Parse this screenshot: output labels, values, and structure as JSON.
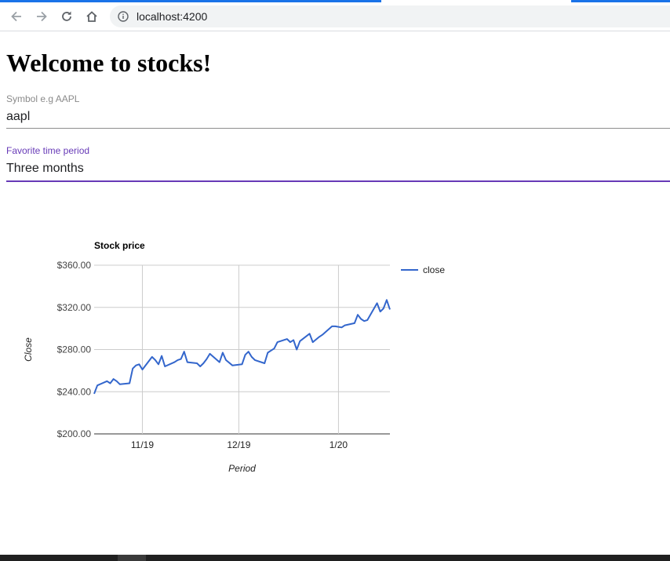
{
  "browser": {
    "url": "localhost:4200",
    "icons": [
      "back-arrow-icon",
      "forward-arrow-icon",
      "reload-icon",
      "home-icon",
      "info-icon"
    ]
  },
  "page": {
    "title": "Welcome to stocks!",
    "symbol": {
      "label": "Symbol e.g AAPL",
      "value": "aapl"
    },
    "period": {
      "label": "Favorite time period",
      "value": "Three months"
    }
  },
  "colors": {
    "accent": "#673ab7",
    "series": "#3366cc",
    "grid": "#cccccc"
  },
  "chart_data": {
    "type": "line",
    "title": "Stock price",
    "xlabel": "Period",
    "ylabel": "Close",
    "ylim": [
      200,
      360
    ],
    "yticks": [
      "$200.00",
      "$240.00",
      "$280.00",
      "$320.00",
      "$360.00"
    ],
    "xticks": [
      "11/19",
      "12/19",
      "1/20"
    ],
    "xtick_dates": [
      "2019-11-01",
      "2019-12-01",
      "2020-01-01"
    ],
    "legend": {
      "position": "right",
      "entries": [
        "close"
      ]
    },
    "grid": true,
    "series": [
      {
        "name": "close",
        "x": [
          "2019-10-17",
          "2019-10-18",
          "2019-10-21",
          "2019-10-22",
          "2019-10-23",
          "2019-10-24",
          "2019-10-25",
          "2019-10-28",
          "2019-10-29",
          "2019-10-30",
          "2019-10-31",
          "2019-11-01",
          "2019-11-04",
          "2019-11-05",
          "2019-11-06",
          "2019-11-07",
          "2019-11-08",
          "2019-11-11",
          "2019-11-12",
          "2019-11-13",
          "2019-11-14",
          "2019-11-15",
          "2019-11-18",
          "2019-11-19",
          "2019-11-20",
          "2019-11-21",
          "2019-11-22",
          "2019-11-25",
          "2019-11-26",
          "2019-11-27",
          "2019-11-29",
          "2019-12-02",
          "2019-12-03",
          "2019-12-04",
          "2019-12-05",
          "2019-12-06",
          "2019-12-09",
          "2019-12-10",
          "2019-12-11",
          "2019-12-12",
          "2019-12-13",
          "2019-12-16",
          "2019-12-17",
          "2019-12-18",
          "2019-12-19",
          "2019-12-20",
          "2019-12-23",
          "2019-12-24",
          "2019-12-26",
          "2019-12-27",
          "2019-12-30",
          "2019-12-31",
          "2020-01-02",
          "2020-01-03",
          "2020-01-06",
          "2020-01-07",
          "2020-01-08",
          "2020-01-09",
          "2020-01-10",
          "2020-01-13",
          "2020-01-14",
          "2020-01-15",
          "2020-01-16",
          "2020-01-17"
        ],
        "values": [
          238,
          246,
          250,
          248,
          252,
          250,
          247,
          248,
          262,
          265,
          266,
          261,
          273,
          270,
          266,
          274,
          264,
          268,
          270,
          271,
          278,
          268,
          267,
          264,
          267,
          271,
          276,
          268,
          277,
          270,
          265,
          266,
          275,
          278,
          273,
          270,
          267,
          277,
          279,
          281,
          287,
          290,
          287,
          289,
          280,
          288,
          295,
          287,
          292,
          294,
          302,
          302,
          301,
          303,
          305,
          313,
          309,
          307,
          308,
          324,
          316,
          319,
          327,
          318
        ]
      }
    ]
  }
}
